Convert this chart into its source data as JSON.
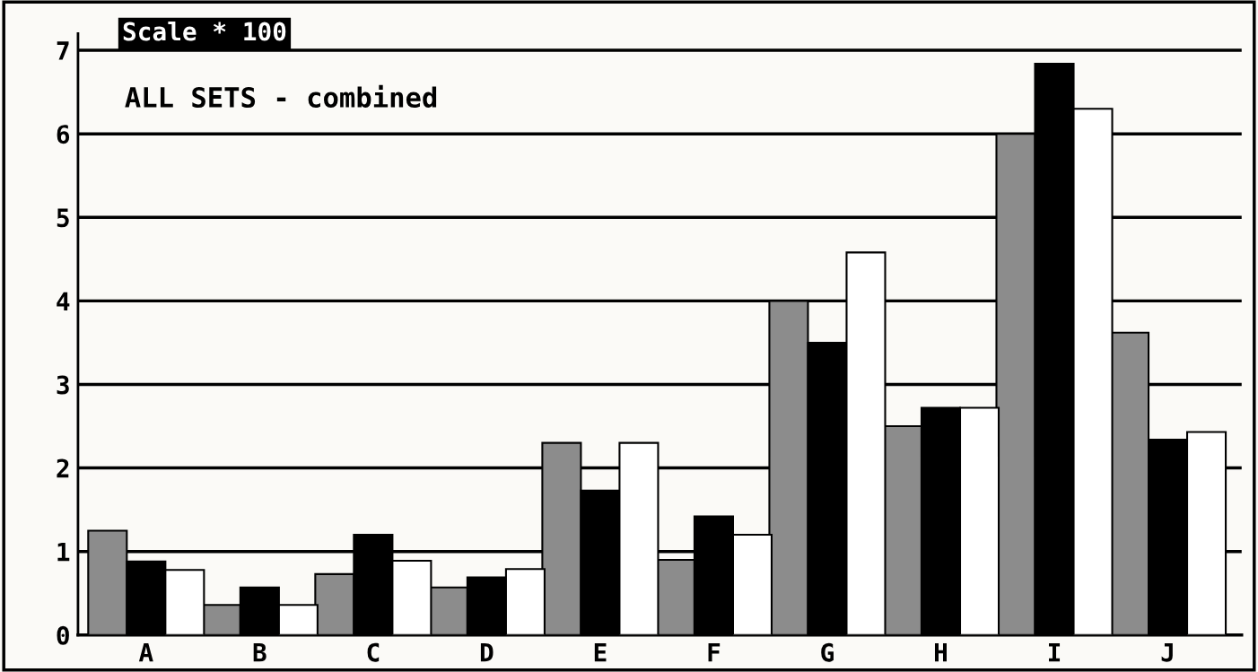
{
  "chart_data": {
    "type": "bar",
    "title": "ALL SETS - combined",
    "annotations": [
      "Scale * 100"
    ],
    "categories": [
      "A",
      "B",
      "C",
      "D",
      "E",
      "F",
      "G",
      "H",
      "I",
      "J"
    ],
    "series": [
      {
        "color": "#8c8c8c",
        "values": [
          1.25,
          0.36,
          0.73,
          0.57,
          2.3,
          0.9,
          4.0,
          2.5,
          6.0,
          3.62
        ]
      },
      {
        "color": "#000000",
        "values": [
          0.88,
          0.57,
          1.2,
          0.69,
          1.73,
          1.42,
          3.5,
          2.72,
          6.84,
          2.34
        ]
      },
      {
        "color": "#ffffff",
        "values": [
          0.78,
          0.36,
          0.89,
          0.79,
          2.3,
          1.2,
          4.58,
          2.72,
          6.3,
          2.43
        ]
      }
    ],
    "ylim": [
      0,
      7.2
    ],
    "yticks": [
      0,
      1,
      2,
      3,
      4,
      5,
      6,
      7
    ],
    "grid": "y"
  }
}
